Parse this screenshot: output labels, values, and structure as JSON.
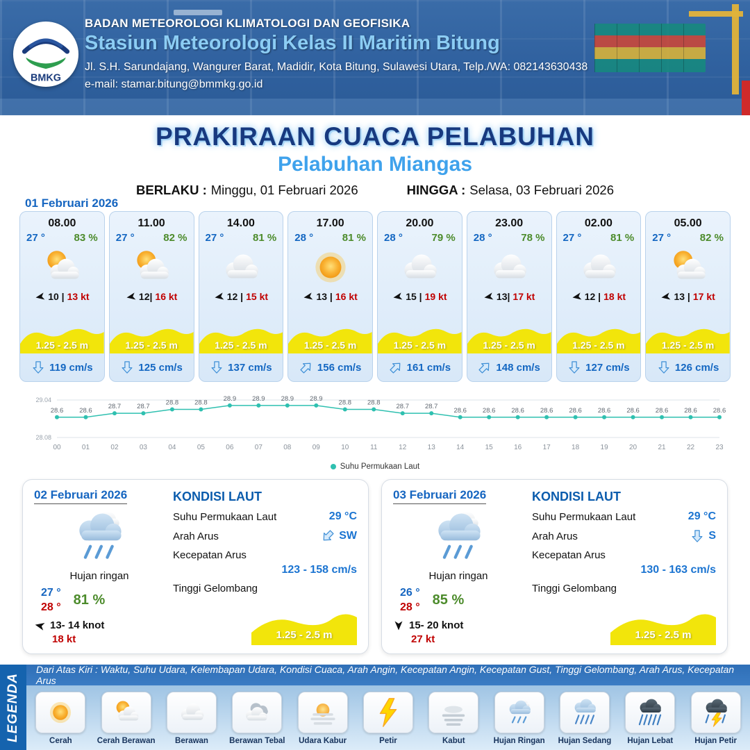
{
  "header": {
    "logo": "BMKG",
    "org": "BADAN METEOROLOGI KLIMATOLOGI DAN GEOFISIKA",
    "station": "Stasiun Meteorologi Kelas II Maritim Bitung",
    "address": "Jl. S.H. Sarundajang, Wangurer Barat, Madidir, Kota Bitung, Sulawesi Utara, Telp./WA: 082143630438",
    "email": "e-mail: stamar.bitung@bmmkg.go.id"
  },
  "title": {
    "main": "PRAKIRAAN CUACA PELABUHAN",
    "port": "Pelabuhan Miangas",
    "berlaku_label": "BERLAKU :",
    "berlaku": "Minggu, 01 Februari 2026",
    "hingga_label": "HINGGA :",
    "hingga": "Selasa, 03 Februari 2026"
  },
  "day1": {
    "date": "01 Februari 2026",
    "cards": [
      {
        "time": "08.00",
        "temp": "27 °",
        "rh": "83 %",
        "icon": "cerah-berawan",
        "wind": "10 |",
        "gust": "13 kt",
        "wave": "1.25 - 2.5 m",
        "current": "119 cm/s",
        "current_dir": "S"
      },
      {
        "time": "11.00",
        "temp": "27 °",
        "rh": "82 %",
        "icon": "cerah-berawan",
        "wind": "12|",
        "gust": "16 kt",
        "wave": "1.25 - 2.5 m",
        "current": "125 cm/s",
        "current_dir": "S"
      },
      {
        "time": "14.00",
        "temp": "27 °",
        "rh": "81 %",
        "icon": "berawan",
        "wind": "12 |",
        "gust": "15 kt",
        "wave": "1.25 - 2.5 m",
        "current": "137 cm/s",
        "current_dir": "S"
      },
      {
        "time": "17.00",
        "temp": "28 °",
        "rh": "81 %",
        "icon": "cerah",
        "wind": "13 |",
        "gust": "16 kt",
        "wave": "1.25 - 2.5 m",
        "current": "156 cm/s",
        "current_dir": "NE"
      },
      {
        "time": "20.00",
        "temp": "28 °",
        "rh": "79 %",
        "icon": "berawan",
        "wind": "15 |",
        "gust": "19 kt",
        "wave": "1.25 - 2.5 m",
        "current": "161 cm/s",
        "current_dir": "NE"
      },
      {
        "time": "23.00",
        "temp": "28 °",
        "rh": "78 %",
        "icon": "berawan",
        "wind": "13|",
        "gust": "17 kt",
        "wave": "1.25 - 2.5 m",
        "current": "148 cm/s",
        "current_dir": "NE"
      },
      {
        "time": "02.00",
        "temp": "27 °",
        "rh": "81 %",
        "icon": "berawan",
        "wind": "12 |",
        "gust": "18 kt",
        "wave": "1.25 - 2.5 m",
        "current": "127 cm/s",
        "current_dir": "S"
      },
      {
        "time": "05.00",
        "temp": "27 °",
        "rh": "82 %",
        "icon": "cerah-berawan",
        "wind": "13 |",
        "gust": "17 kt",
        "wave": "1.25 - 2.5 m",
        "current": "126 cm/s",
        "current_dir": "S"
      }
    ]
  },
  "chart_data": {
    "type": "line",
    "series_name": "Suhu Permukaan Laut",
    "x": [
      "00",
      "01",
      "02",
      "03",
      "04",
      "05",
      "06",
      "07",
      "08",
      "09",
      "10",
      "11",
      "12",
      "13",
      "14",
      "15",
      "16",
      "17",
      "18",
      "19",
      "20",
      "21",
      "22",
      "23"
    ],
    "values": [
      28.6,
      28.6,
      28.7,
      28.7,
      28.8,
      28.8,
      28.9,
      28.9,
      28.9,
      28.9,
      28.8,
      28.8,
      28.7,
      28.7,
      28.6,
      28.6,
      28.6,
      28.6,
      28.6,
      28.6,
      28.6,
      28.6,
      28.6,
      28.6
    ],
    "ylim": [
      28.08,
      29.04
    ],
    "ymax_label": "29.04",
    "ymin_label": "28.08",
    "line_color": "#2fc0b0",
    "grid": true,
    "legend_position": "bottom"
  },
  "days": [
    {
      "date": "02 Februari 2026",
      "condition": "Hujan ringan",
      "icon": "hujan-ringan",
      "temp_min": "27 °",
      "temp_max": "28 °",
      "rh": "81 %",
      "wind": "13- 14 knot",
      "gust": "18 kt",
      "sea_title": "KONDISI LAUT",
      "sst_label": "Suhu Permukaan Laut",
      "sst": "29 °C",
      "dir_label": "Arah Arus",
      "dir": "SW",
      "speed_label": "Kecepatan Arus",
      "speed": "123 - 158 cm/s",
      "wave_label": "Tinggi Gelombang",
      "wave": "1.25 - 2.5 m"
    },
    {
      "date": "03 Februari 2026",
      "condition": "Hujan ringan",
      "icon": "hujan-ringan",
      "temp_min": "26 °",
      "temp_max": "28 °",
      "rh": "85 %",
      "wind": "15- 20 knot",
      "gust": "27 kt",
      "sea_title": "KONDISI LAUT",
      "sst_label": "Suhu Permukaan Laut",
      "sst": "29 °C",
      "dir_label": "Arah Arus",
      "dir": "S",
      "speed_label": "Kecepatan Arus",
      "speed": "130 - 163 cm/s",
      "wave_label": "Tinggi Gelombang",
      "wave": "1.25 - 2.5 m"
    }
  ],
  "legend": {
    "heading": "LEGENDA",
    "caption": "Dari Atas Kiri : Waktu, Suhu Udara, Kelembapan Udara, Kondisi Cuaca, Arah Angin, Kecepatan Angin, Kecepatan Gust, Tinggi Gelombang, Arah Arus, Kecepatan Arus",
    "items": [
      {
        "label": "Cerah",
        "icon": "cerah"
      },
      {
        "label": "Cerah Berawan",
        "icon": "cerah-berawan"
      },
      {
        "label": "Berawan",
        "icon": "berawan"
      },
      {
        "label": "Berawan Tebal",
        "icon": "berawan-tebal"
      },
      {
        "label": "Udara Kabur",
        "icon": "udara-kabur"
      },
      {
        "label": "Petir",
        "icon": "petir"
      },
      {
        "label": "Kabut",
        "icon": "kabut"
      },
      {
        "label": "Hujan Ringan",
        "icon": "hujan-ringan"
      },
      {
        "label": "Hujan Sedang",
        "icon": "hujan-sedang"
      },
      {
        "label": "Hujan Lebat",
        "icon": "hujan-lebat"
      },
      {
        "label": "Hujan Petir",
        "icon": "hujan-petir"
      }
    ]
  }
}
